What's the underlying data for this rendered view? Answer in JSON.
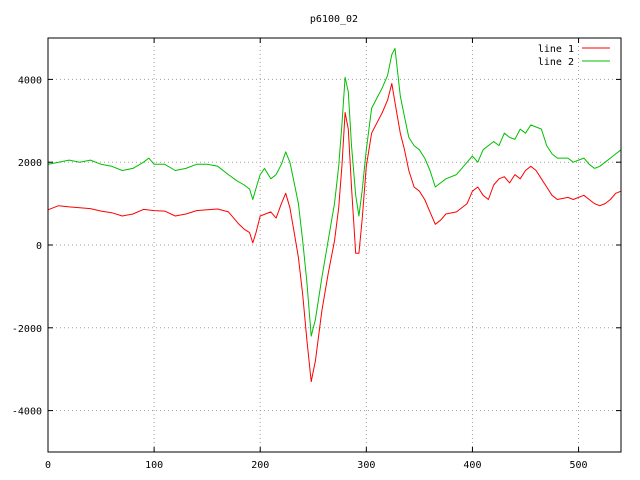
{
  "chart_data": {
    "type": "line",
    "title": "p6100_02",
    "xlabel": "",
    "ylabel": "",
    "xlim": [
      0,
      540
    ],
    "ylim": [
      -5000,
      5000
    ],
    "xticks": [
      0,
      100,
      200,
      300,
      400,
      500
    ],
    "yticks": [
      -4000,
      -2000,
      0,
      2000,
      4000
    ],
    "grid": true,
    "legend_position": "top-right",
    "series": [
      {
        "name": "line 1",
        "color": "#ff0000",
        "points": [
          [
            0,
            850
          ],
          [
            10,
            950
          ],
          [
            20,
            920
          ],
          [
            30,
            900
          ],
          [
            40,
            880
          ],
          [
            50,
            820
          ],
          [
            60,
            780
          ],
          [
            70,
            700
          ],
          [
            80,
            750
          ],
          [
            90,
            860
          ],
          [
            100,
            830
          ],
          [
            110,
            820
          ],
          [
            120,
            700
          ],
          [
            130,
            750
          ],
          [
            140,
            830
          ],
          [
            150,
            850
          ],
          [
            160,
            870
          ],
          [
            170,
            800
          ],
          [
            175,
            650
          ],
          [
            180,
            500
          ],
          [
            185,
            380
          ],
          [
            190,
            300
          ],
          [
            193,
            50
          ],
          [
            196,
            300
          ],
          [
            200,
            700
          ],
          [
            210,
            800
          ],
          [
            215,
            650
          ],
          [
            220,
            1000
          ],
          [
            224,
            1250
          ],
          [
            228,
            900
          ],
          [
            232,
            300
          ],
          [
            236,
            -300
          ],
          [
            240,
            -1200
          ],
          [
            244,
            -2300
          ],
          [
            248,
            -3300
          ],
          [
            252,
            -2800
          ],
          [
            258,
            -1600
          ],
          [
            264,
            -700
          ],
          [
            270,
            100
          ],
          [
            274,
            900
          ],
          [
            277,
            1900
          ],
          [
            280,
            3200
          ],
          [
            283,
            2800
          ],
          [
            286,
            1400
          ],
          [
            290,
            -200
          ],
          [
            293,
            -200
          ],
          [
            296,
            600
          ],
          [
            300,
            1900
          ],
          [
            305,
            2700
          ],
          [
            315,
            3200
          ],
          [
            320,
            3500
          ],
          [
            324,
            3900
          ],
          [
            328,
            3300
          ],
          [
            332,
            2700
          ],
          [
            336,
            2300
          ],
          [
            340,
            1800
          ],
          [
            345,
            1400
          ],
          [
            350,
            1300
          ],
          [
            355,
            1100
          ],
          [
            360,
            800
          ],
          [
            365,
            500
          ],
          [
            370,
            600
          ],
          [
            375,
            750
          ],
          [
            385,
            800
          ],
          [
            395,
            1000
          ],
          [
            400,
            1300
          ],
          [
            405,
            1400
          ],
          [
            410,
            1200
          ],
          [
            415,
            1100
          ],
          [
            420,
            1450
          ],
          [
            425,
            1600
          ],
          [
            430,
            1650
          ],
          [
            435,
            1500
          ],
          [
            440,
            1700
          ],
          [
            445,
            1600
          ],
          [
            450,
            1800
          ],
          [
            455,
            1900
          ],
          [
            460,
            1800
          ],
          [
            465,
            1600
          ],
          [
            470,
            1400
          ],
          [
            475,
            1200
          ],
          [
            480,
            1100
          ],
          [
            490,
            1150
          ],
          [
            495,
            1100
          ],
          [
            500,
            1150
          ],
          [
            505,
            1200
          ],
          [
            510,
            1100
          ],
          [
            515,
            1000
          ],
          [
            520,
            950
          ],
          [
            525,
            1000
          ],
          [
            530,
            1100
          ],
          [
            535,
            1250
          ],
          [
            540,
            1300
          ]
        ]
      },
      {
        "name": "line 2",
        "color": "#00c000",
        "points": [
          [
            0,
            1950
          ],
          [
            10,
            2000
          ],
          [
            20,
            2050
          ],
          [
            30,
            2000
          ],
          [
            40,
            2050
          ],
          [
            50,
            1950
          ],
          [
            60,
            1900
          ],
          [
            70,
            1800
          ],
          [
            80,
            1850
          ],
          [
            90,
            2000
          ],
          [
            95,
            2100
          ],
          [
            100,
            1950
          ],
          [
            110,
            1950
          ],
          [
            120,
            1800
          ],
          [
            130,
            1850
          ],
          [
            140,
            1950
          ],
          [
            150,
            1950
          ],
          [
            160,
            1900
          ],
          [
            170,
            1700
          ],
          [
            178,
            1550
          ],
          [
            185,
            1450
          ],
          [
            190,
            1350
          ],
          [
            193,
            1100
          ],
          [
            197,
            1450
          ],
          [
            200,
            1700
          ],
          [
            204,
            1850
          ],
          [
            210,
            1600
          ],
          [
            215,
            1700
          ],
          [
            220,
            1950
          ],
          [
            224,
            2250
          ],
          [
            228,
            2000
          ],
          [
            232,
            1500
          ],
          [
            236,
            1000
          ],
          [
            240,
            100
          ],
          [
            244,
            -900
          ],
          [
            248,
            -2200
          ],
          [
            252,
            -1800
          ],
          [
            258,
            -800
          ],
          [
            264,
            100
          ],
          [
            270,
            1000
          ],
          [
            274,
            1900
          ],
          [
            277,
            2900
          ],
          [
            280,
            4050
          ],
          [
            283,
            3700
          ],
          [
            286,
            2400
          ],
          [
            290,
            1200
          ],
          [
            293,
            700
          ],
          [
            296,
            1300
          ],
          [
            300,
            2300
          ],
          [
            305,
            3300
          ],
          [
            315,
            3800
          ],
          [
            320,
            4100
          ],
          [
            324,
            4600
          ],
          [
            327,
            4750
          ],
          [
            332,
            3600
          ],
          [
            336,
            3100
          ],
          [
            340,
            2600
          ],
          [
            345,
            2400
          ],
          [
            350,
            2300
          ],
          [
            355,
            2100
          ],
          [
            360,
            1800
          ],
          [
            365,
            1400
          ],
          [
            370,
            1500
          ],
          [
            375,
            1600
          ],
          [
            385,
            1700
          ],
          [
            395,
            2000
          ],
          [
            400,
            2150
          ],
          [
            405,
            2000
          ],
          [
            410,
            2300
          ],
          [
            415,
            2400
          ],
          [
            420,
            2500
          ],
          [
            425,
            2400
          ],
          [
            430,
            2700
          ],
          [
            435,
            2600
          ],
          [
            440,
            2550
          ],
          [
            445,
            2800
          ],
          [
            450,
            2700
          ],
          [
            455,
            2900
          ],
          [
            460,
            2850
          ],
          [
            465,
            2800
          ],
          [
            470,
            2400
          ],
          [
            475,
            2200
          ],
          [
            480,
            2100
          ],
          [
            490,
            2100
          ],
          [
            495,
            2000
          ],
          [
            500,
            2050
          ],
          [
            505,
            2100
          ],
          [
            510,
            1950
          ],
          [
            515,
            1850
          ],
          [
            520,
            1900
          ],
          [
            525,
            2000
          ],
          [
            530,
            2100
          ],
          [
            535,
            2200
          ],
          [
            540,
            2300
          ]
        ]
      }
    ]
  }
}
